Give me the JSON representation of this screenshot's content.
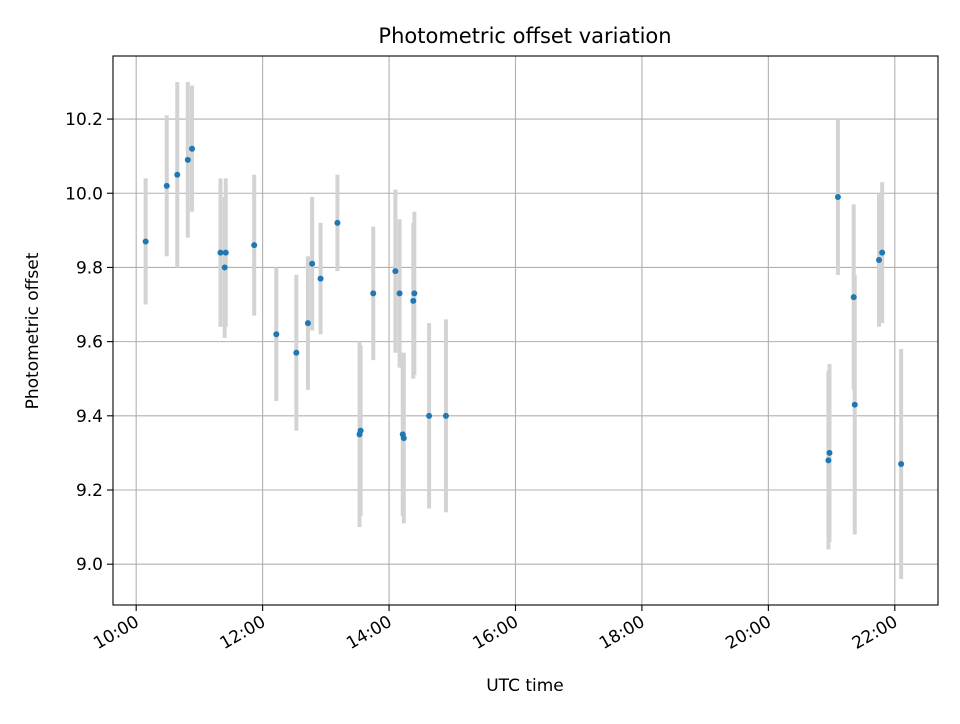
{
  "chart_data": {
    "type": "scatter",
    "title": "Photometric offset variation",
    "xlabel": "UTC time",
    "ylabel": "Photometric offset",
    "x_is_time": true,
    "xlim": [
      "09:38",
      "22:41"
    ],
    "ylim": [
      8.89,
      10.37
    ],
    "x_ticks": [
      "10:00",
      "12:00",
      "14:00",
      "16:00",
      "18:00",
      "20:00",
      "22:00"
    ],
    "y_ticks": [
      9.0,
      9.2,
      9.4,
      9.6,
      9.8,
      10.0,
      10.2
    ],
    "grid": true,
    "colors": {
      "point": "#1f77b4",
      "errorbar": "#d3d3d3",
      "grid": "#b0b0b0",
      "axes": "#000000"
    },
    "points": [
      {
        "x": "10:09",
        "y": 9.87,
        "yerr": 0.17
      },
      {
        "x": "10:29",
        "y": 10.02,
        "yerr": 0.19
      },
      {
        "x": "10:39",
        "y": 10.05,
        "yerr": 0.25
      },
      {
        "x": "10:49",
        "y": 10.09,
        "yerr": 0.21
      },
      {
        "x": "10:53",
        "y": 10.12,
        "yerr": 0.17
      },
      {
        "x": "11:20",
        "y": 9.84,
        "yerr": 0.2
      },
      {
        "x": "11:25",
        "y": 9.84,
        "yerr": 0.2
      },
      {
        "x": "11:24",
        "y": 9.8,
        "yerr": 0.19
      },
      {
        "x": "11:52",
        "y": 9.86,
        "yerr": 0.19
      },
      {
        "x": "12:13",
        "y": 9.62,
        "yerr": 0.18
      },
      {
        "x": "12:32",
        "y": 9.57,
        "yerr": 0.21
      },
      {
        "x": "12:43",
        "y": 9.65,
        "yerr": 0.18
      },
      {
        "x": "12:47",
        "y": 9.81,
        "yerr": 0.18
      },
      {
        "x": "12:55",
        "y": 9.77,
        "yerr": 0.15
      },
      {
        "x": "13:11",
        "y": 9.92,
        "yerr": 0.13
      },
      {
        "x": "13:32",
        "y": 9.35,
        "yerr": 0.25
      },
      {
        "x": "13:33",
        "y": 9.36,
        "yerr": 0.23
      },
      {
        "x": "13:45",
        "y": 9.73,
        "yerr": 0.18
      },
      {
        "x": "14:06",
        "y": 9.79,
        "yerr": 0.22
      },
      {
        "x": "14:10",
        "y": 9.73,
        "yerr": 0.2
      },
      {
        "x": "14:13",
        "y": 9.35,
        "yerr": 0.22
      },
      {
        "x": "14:14",
        "y": 9.34,
        "yerr": 0.23
      },
      {
        "x": "14:23",
        "y": 9.71,
        "yerr": 0.21
      },
      {
        "x": "14:24",
        "y": 9.73,
        "yerr": 0.22
      },
      {
        "x": "14:38",
        "y": 9.4,
        "yerr": 0.25
      },
      {
        "x": "14:54",
        "y": 9.4,
        "yerr": 0.26
      },
      {
        "x": "20:57",
        "y": 9.28,
        "yerr": 0.24
      },
      {
        "x": "20:58",
        "y": 9.3,
        "yerr": 0.24
      },
      {
        "x": "21:06",
        "y": 9.99,
        "yerr": 0.21
      },
      {
        "x": "21:21",
        "y": 9.72,
        "yerr": 0.25
      },
      {
        "x": "21:22",
        "y": 9.43,
        "yerr": 0.35
      },
      {
        "x": "21:45",
        "y": 9.82,
        "yerr": 0.18
      },
      {
        "x": "21:48",
        "y": 9.84,
        "yerr": 0.19
      },
      {
        "x": "22:06",
        "y": 9.27,
        "yerr": 0.31
      }
    ]
  }
}
